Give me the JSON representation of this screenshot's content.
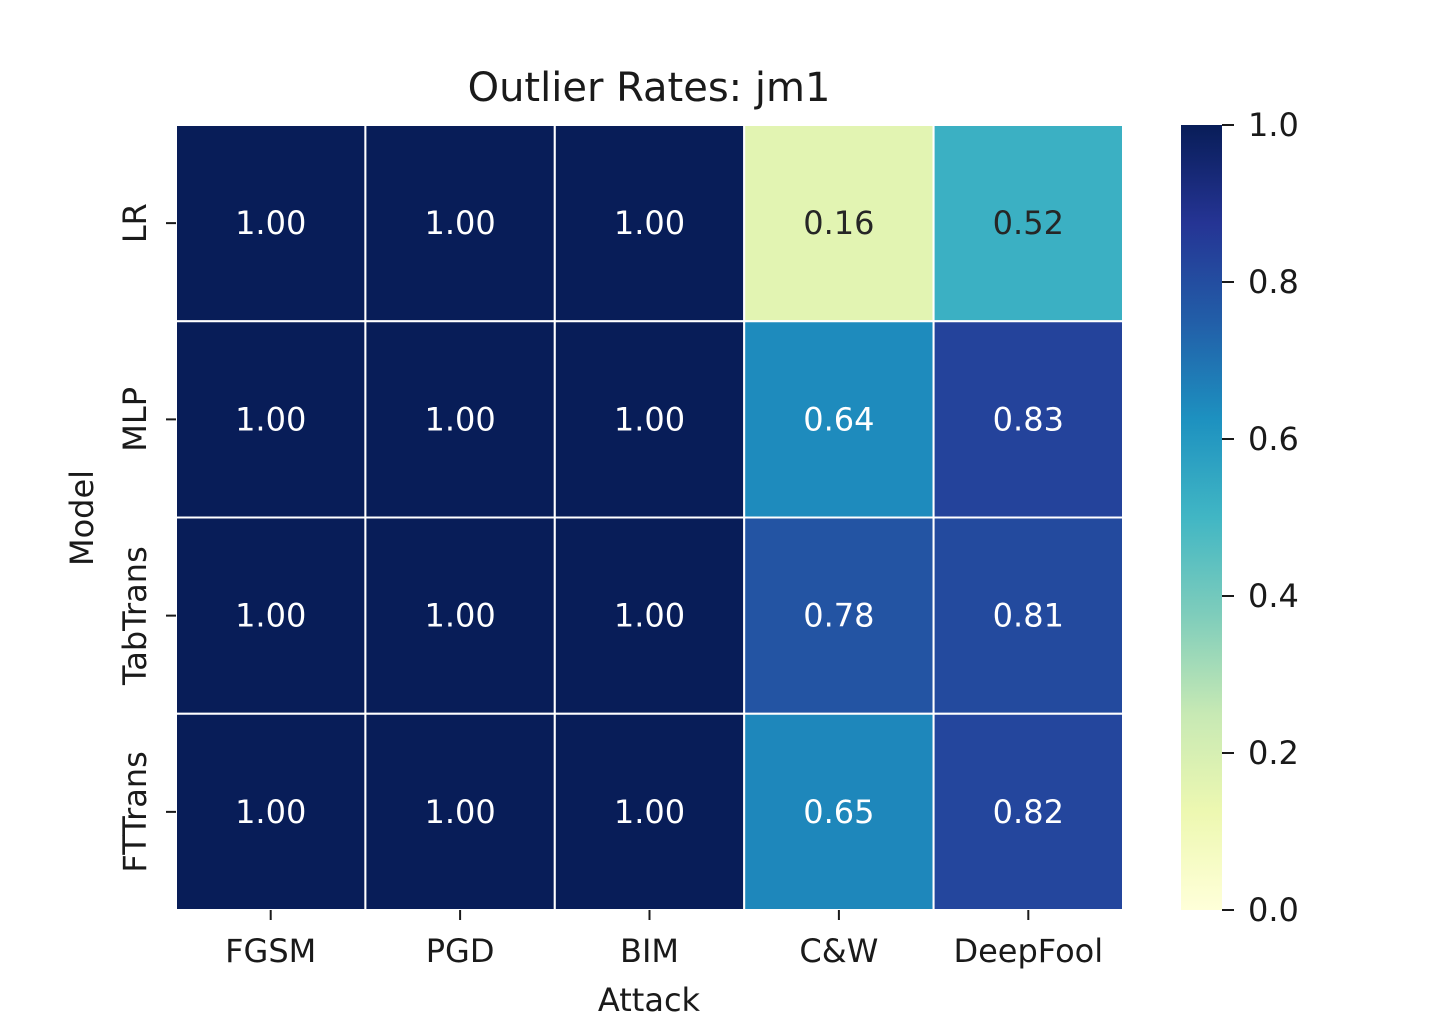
{
  "chart_data": {
    "type": "heatmap",
    "title": "Outlier Rates: jm1",
    "xlabel": "Attack",
    "ylabel": "Model",
    "x_categories": [
      "FGSM",
      "PGD",
      "BIM",
      "C&W",
      "DeepFool"
    ],
    "y_categories": [
      "LR",
      "MLP",
      "TabTrans",
      "FTTrans"
    ],
    "values": [
      [
        1.0,
        1.0,
        1.0,
        0.16,
        0.52
      ],
      [
        1.0,
        1.0,
        1.0,
        0.64,
        0.83
      ],
      [
        1.0,
        1.0,
        1.0,
        0.78,
        0.81
      ],
      [
        1.0,
        1.0,
        1.0,
        0.65,
        0.82
      ]
    ],
    "value_format": "0.00",
    "colormap": "YlGnBu",
    "vmin": 0.0,
    "vmax": 1.0,
    "colorbar_ticks": [
      "0.0",
      "0.2",
      "0.4",
      "0.6",
      "0.8",
      "1.0"
    ],
    "grid": false,
    "cell_border_color": "#ffffff"
  }
}
